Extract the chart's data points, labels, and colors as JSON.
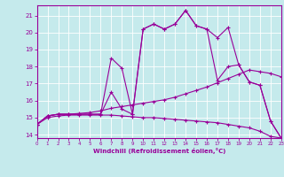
{
  "xlabel": "Windchill (Refroidissement éolien,°C)",
  "xlim": [
    0,
    23
  ],
  "ylim": [
    13.8,
    21.6
  ],
  "yticks": [
    14,
    15,
    16,
    17,
    18,
    19,
    20,
    21
  ],
  "xticks": [
    0,
    1,
    2,
    3,
    4,
    5,
    6,
    7,
    8,
    9,
    10,
    11,
    12,
    13,
    14,
    15,
    16,
    17,
    18,
    19,
    20,
    21,
    22,
    23
  ],
  "bg_color": "#c5eaec",
  "line_color": "#990099",
  "grid_color": "#b0d8da",
  "lines": [
    {
      "x": [
        0,
        1,
        2,
        3,
        4,
        5,
        6,
        7,
        8,
        9,
        10,
        11,
        12,
        13,
        14,
        15,
        16,
        17,
        18,
        19,
        20,
        21,
        22,
        23
      ],
      "y": [
        14.6,
        15.1,
        15.2,
        15.2,
        15.2,
        15.2,
        15.2,
        18.5,
        17.9,
        15.2,
        20.2,
        20.5,
        20.2,
        20.5,
        21.3,
        20.4,
        20.2,
        19.7,
        20.3,
        18.1,
        17.1,
        16.9,
        14.8,
        13.8
      ]
    },
    {
      "x": [
        0,
        1,
        2,
        3,
        4,
        5,
        6,
        7,
        8,
        9,
        10,
        11,
        12,
        13,
        14,
        15,
        16,
        17,
        18,
        19,
        20,
        21,
        22,
        23
      ],
      "y": [
        14.6,
        15.1,
        15.2,
        15.2,
        15.2,
        15.2,
        15.2,
        16.5,
        15.5,
        15.2,
        20.2,
        20.5,
        20.2,
        20.5,
        21.3,
        20.4,
        20.2,
        17.2,
        18.0,
        18.1,
        17.1,
        16.9,
        14.8,
        13.8
      ]
    },
    {
      "x": [
        0,
        1,
        2,
        3,
        4,
        5,
        6,
        7,
        8,
        9,
        10,
        11,
        12,
        13,
        14,
        15,
        16,
        17,
        18,
        19,
        20,
        21,
        22,
        23
      ],
      "y": [
        14.6,
        15.1,
        15.2,
        15.2,
        15.25,
        15.3,
        15.4,
        15.55,
        15.65,
        15.75,
        15.85,
        15.95,
        16.05,
        16.2,
        16.4,
        16.6,
        16.8,
        17.05,
        17.3,
        17.55,
        17.8,
        17.7,
        17.6,
        17.4
      ]
    },
    {
      "x": [
        0,
        1,
        2,
        3,
        4,
        5,
        6,
        7,
        8,
        9,
        10,
        11,
        12,
        13,
        14,
        15,
        16,
        17,
        18,
        19,
        20,
        21,
        22,
        23
      ],
      "y": [
        14.6,
        15.0,
        15.1,
        15.15,
        15.15,
        15.15,
        15.15,
        15.15,
        15.1,
        15.05,
        15.0,
        15.0,
        14.95,
        14.9,
        14.85,
        14.8,
        14.75,
        14.7,
        14.6,
        14.5,
        14.4,
        14.2,
        13.9,
        13.8
      ]
    }
  ]
}
